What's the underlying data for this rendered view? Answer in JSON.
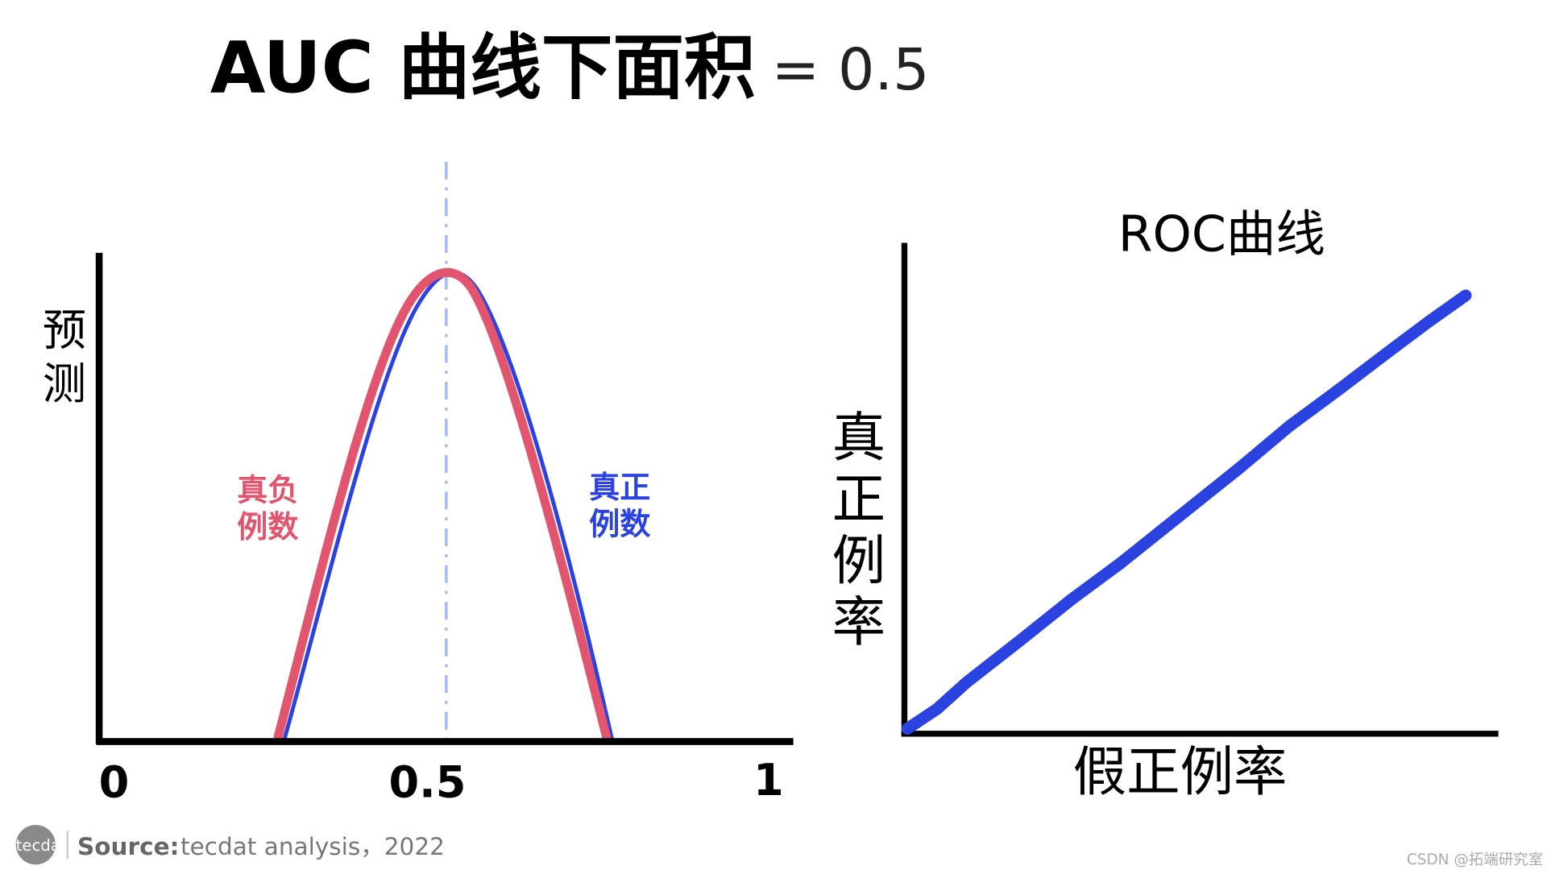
{
  "title": {
    "main": "AUC  曲线下面积",
    "value": "= 0.5"
  },
  "left_panel": {
    "y_label": [
      "预",
      "测"
    ],
    "negative_label": [
      "真负",
      "例数"
    ],
    "positive_label": [
      "真正",
      "例数"
    ],
    "x_tick_labels": [
      "0",
      "0.5",
      "1"
    ]
  },
  "right_panel": {
    "title": "ROC曲线",
    "y_label": [
      "真",
      "正",
      "例",
      "率"
    ],
    "x_label": "假正例率"
  },
  "footer": {
    "logo": "tecdat",
    "source_label": "Source:",
    "source_text": "tecdat analysis，2022",
    "watermark": "CSDN @拓端研究室"
  }
}
